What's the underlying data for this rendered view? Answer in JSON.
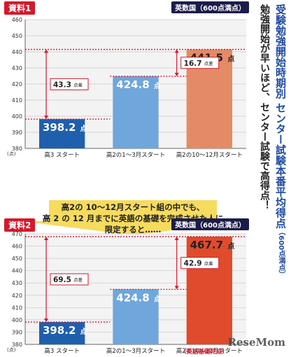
{
  "side_title": "受験勉強開始時期別 センター試験本番平均得点",
  "side_title_note": "（600点満点）",
  "side_subtitle": "勉強開始が早いほど、センター試験で高得点！",
  "banner": {
    "line1": "高2の 10～12月スタート組の中でも、",
    "line2": "高 2 の 12 月までに英語の基礎を完成させた人に",
    "line3": "限定すると……"
  },
  "footer_note": "（英語基礎完成）",
  "logo": "ReseMom",
  "colors": {
    "blue_dark": "#1f5fae",
    "blue_light": "#6fa6dc",
    "orange": "#e58a66",
    "red": "#e04b2c",
    "accent": "#d6172b"
  },
  "chart_data": [
    {
      "type": "bar",
      "badge": "資料1",
      "tag": "英数国（600点満点）",
      "ylim": [
        380,
        460
      ],
      "yticks": [
        380,
        390,
        400,
        410,
        420,
        430,
        440,
        450,
        460
      ],
      "y_unit": "(点)",
      "categories": [
        "高3 スタート",
        "高2の1～3月スタート",
        "高2の10～12月スタート"
      ],
      "values": [
        398.2,
        424.8,
        441.5
      ],
      "value_labels": [
        "398.2",
        "424.8",
        "441.5"
      ],
      "value_unit": "点",
      "bar_colors": [
        "#1f5fae",
        "#6fa6dc",
        "#e58a66"
      ],
      "diffs": [
        {
          "label": "43.3",
          "unit": "点差",
          "from": 398.2,
          "to": 441.5
        },
        {
          "label": "16.7",
          "unit": "点差",
          "from": 424.8,
          "to": 441.5
        }
      ]
    },
    {
      "type": "bar",
      "badge": "資料2",
      "tag": "英数国（600点満点）",
      "ylim": [
        380,
        470
      ],
      "yticks": [
        380,
        390,
        400,
        410,
        420,
        430,
        440,
        450,
        460,
        470
      ],
      "y_unit": "(点)",
      "categories": [
        "高3 スタート",
        "高2の1～3月スタート",
        "高2の10～12月スタート"
      ],
      "values": [
        398.2,
        424.8,
        467.7
      ],
      "value_labels": [
        "398.2",
        "424.8",
        "467.7"
      ],
      "value_unit": "点",
      "bar_colors": [
        "#1f5fae",
        "#6fa6dc",
        "#e04b2c"
      ],
      "diffs": [
        {
          "label": "69.5",
          "unit": "点差",
          "from": 398.2,
          "to": 467.7
        },
        {
          "label": "42.9",
          "unit": "点差",
          "from": 424.8,
          "to": 467.7
        }
      ]
    }
  ]
}
